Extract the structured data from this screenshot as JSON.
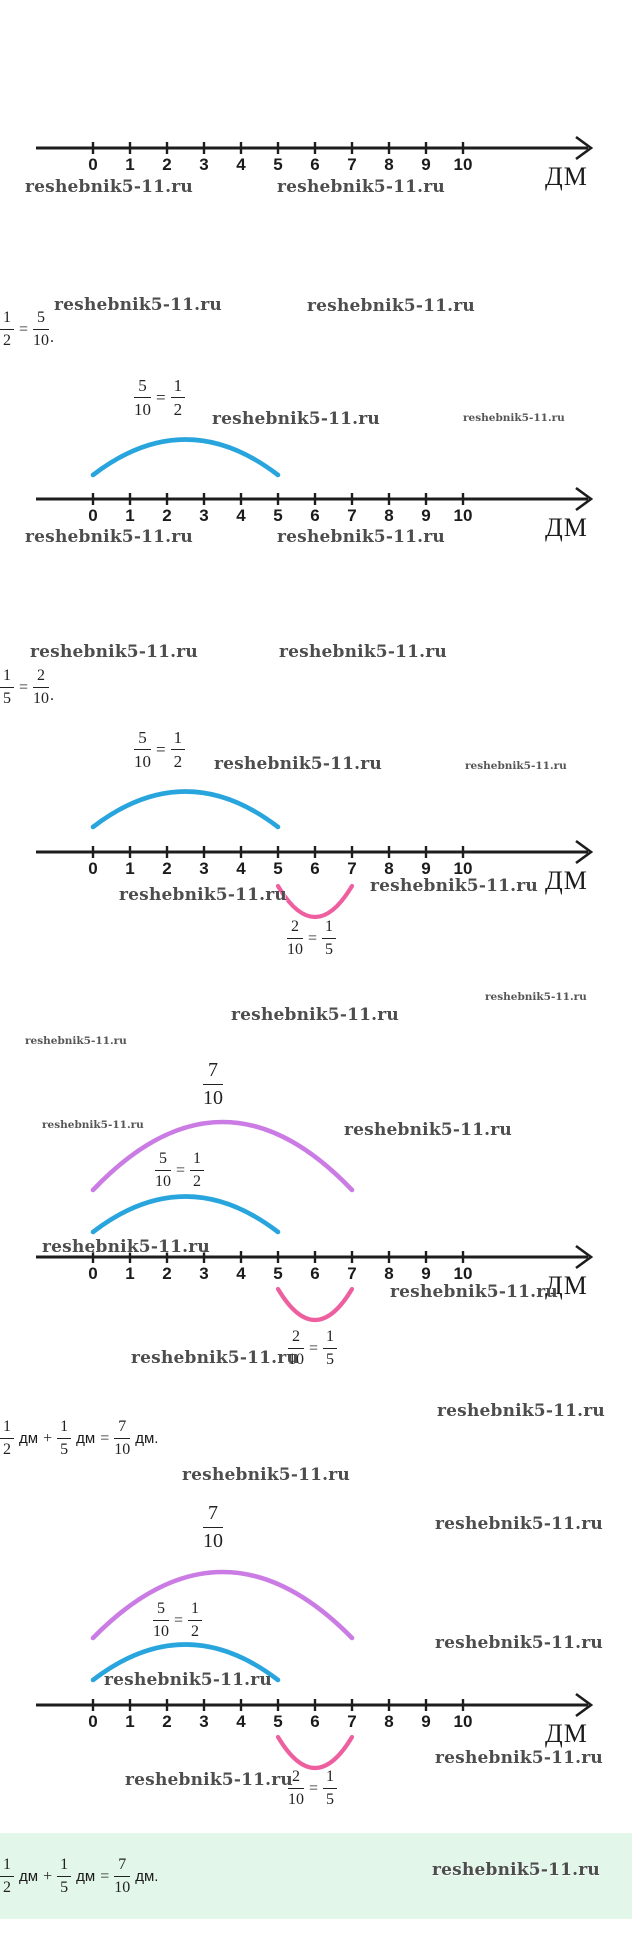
{
  "watermark": "reshebnik5-11.ru",
  "number_line": {
    "unit": "ДМ",
    "ticks": [
      "0",
      "1",
      "2",
      "3",
      "4",
      "5",
      "6",
      "7",
      "8",
      "9",
      "10"
    ]
  },
  "fractions": {
    "one_half": {
      "num": "1",
      "den": "2"
    },
    "one_fifth": {
      "num": "1",
      "den": "5"
    },
    "five_tenths": {
      "num": "5",
      "den": "10"
    },
    "two_tenths": {
      "num": "2",
      "den": "10"
    },
    "seven_tenths": {
      "num": "7",
      "den": "10"
    }
  },
  "symbols": {
    "equals": "=",
    "plus": "+",
    "period": ".",
    "unit_dm": "дм",
    "unit_dm_period": "дм."
  },
  "colors": {
    "half_arc": "#29a5dd",
    "fifth_arc": "#ee5fa0",
    "sum_arc": "#cb7ce4",
    "highlight_bg": "#e3f6ea"
  }
}
